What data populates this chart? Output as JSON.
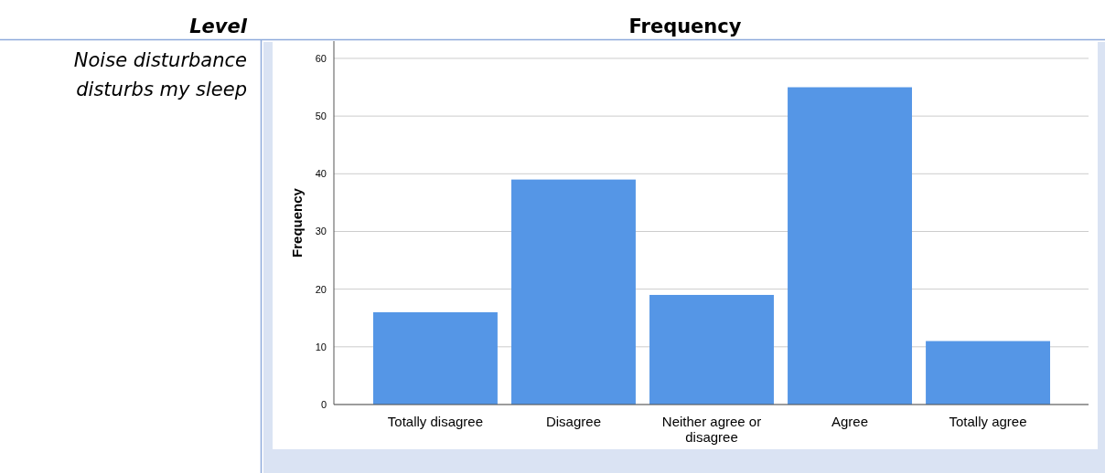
{
  "chart_data": {
    "type": "bar",
    "annotations": [
      "Level",
      "Frequency",
      "Noise disturbance disturbs my sleep"
    ],
    "ylabel": "Frequency",
    "categories": [
      "Totally disagree",
      "Disagree",
      "Neither agree or disagree",
      "Agree",
      "Totally agree"
    ],
    "values": [
      16,
      39,
      19,
      55,
      11
    ],
    "color": "#5596e6",
    "ylim": [
      0,
      63
    ],
    "yticks": [
      0,
      10,
      20,
      30,
      40,
      50,
      60
    ],
    "grid": "y"
  }
}
